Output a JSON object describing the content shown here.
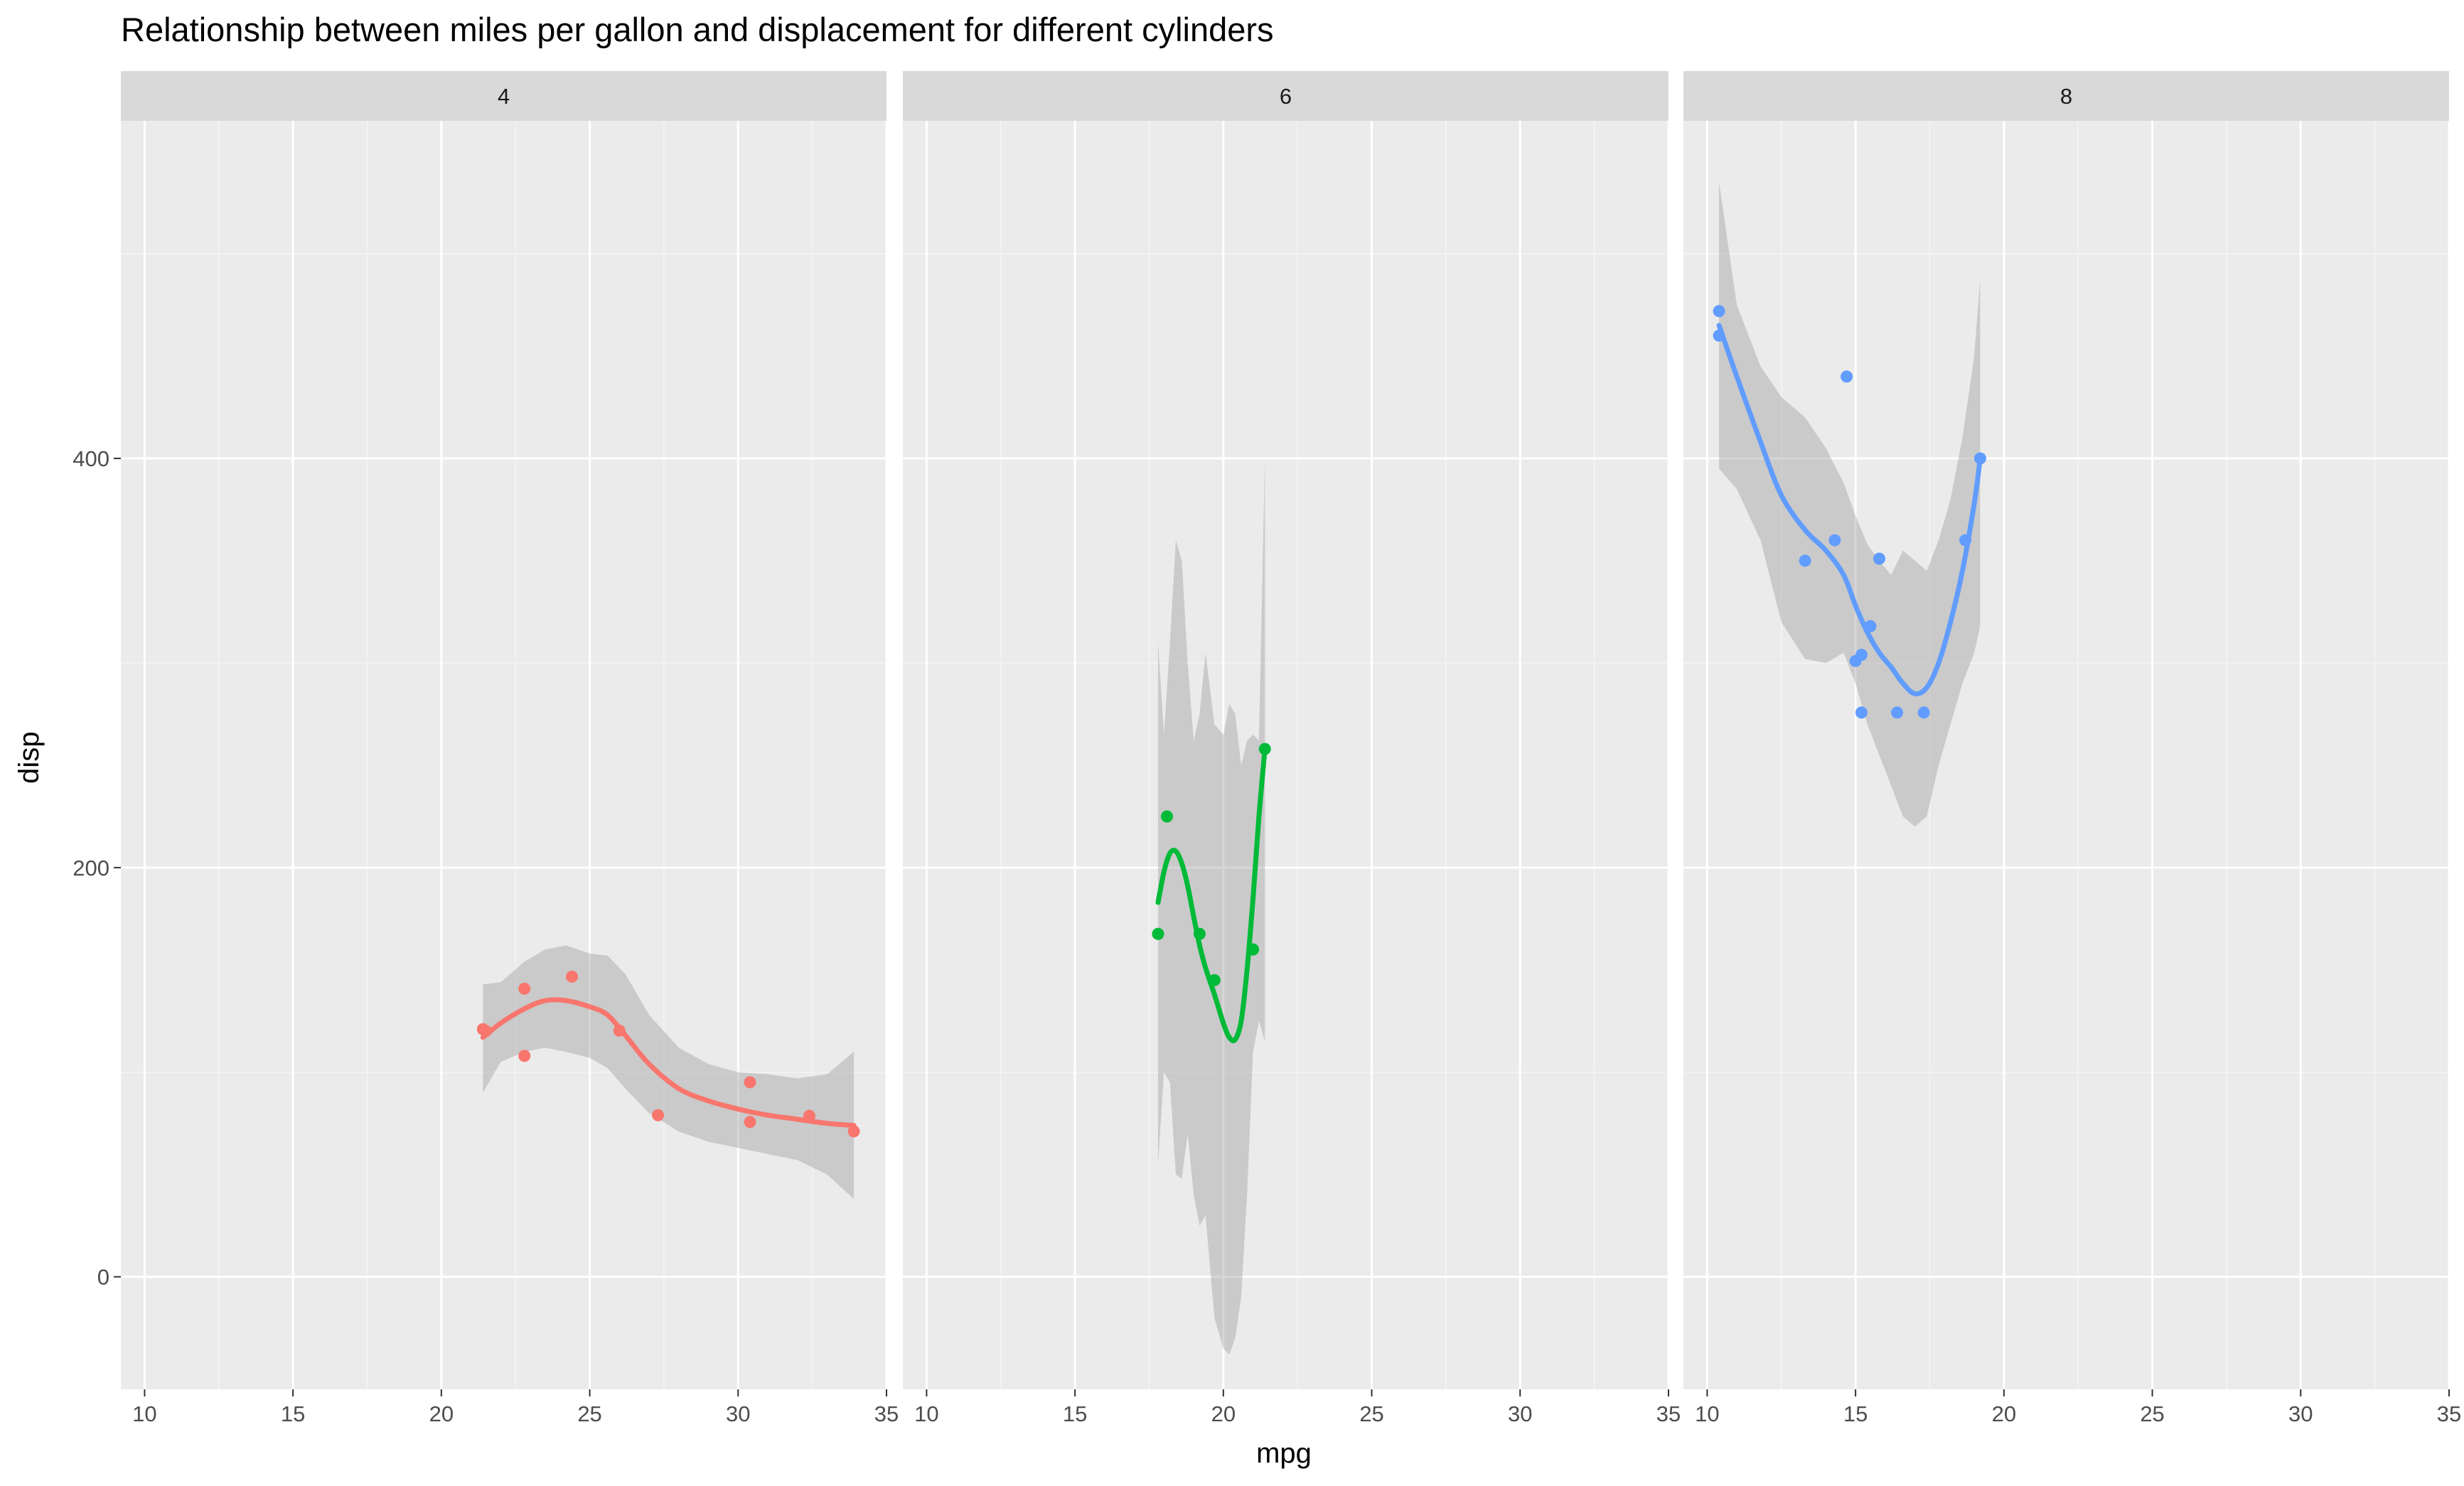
{
  "chart_data": {
    "type": "scatter",
    "title": "Relationship between miles per gallon and displacement for different cylinders",
    "xlabel": "mpg",
    "ylabel": "disp",
    "xlim": [
      9.2,
      35
    ],
    "ylim": [
      -55,
      565
    ],
    "x_ticks": [
      "10",
      "15",
      "20",
      "25",
      "30",
      "35"
    ],
    "y_ticks": [
      "0",
      "200",
      "400"
    ],
    "x_tick_values": [
      10,
      15,
      20,
      25,
      30,
      35
    ],
    "y_tick_values": [
      0,
      200,
      400
    ],
    "grid": true,
    "legend": "none",
    "facet_by": "cyl",
    "panels": [
      {
        "label": "4",
        "color": "#F8766D",
        "points": [
          {
            "x": 21.4,
            "y": 121.0
          },
          {
            "x": 22.8,
            "y": 140.8
          },
          {
            "x": 22.8,
            "y": 108.0
          },
          {
            "x": 24.4,
            "y": 146.7
          },
          {
            "x": 26.0,
            "y": 120.3
          },
          {
            "x": 27.3,
            "y": 79.0
          },
          {
            "x": 30.4,
            "y": 75.7
          },
          {
            "x": 30.4,
            "y": 95.1
          },
          {
            "x": 32.4,
            "y": 78.7
          },
          {
            "x": 33.9,
            "y": 71.1
          },
          {
            "x": 21.5,
            "y": 120.1
          }
        ],
        "smooth": [
          {
            "x": 21.4,
            "y": 117
          },
          {
            "x": 22.0,
            "y": 124
          },
          {
            "x": 22.8,
            "y": 131
          },
          {
            "x": 23.5,
            "y": 135
          },
          {
            "x": 24.2,
            "y": 135
          },
          {
            "x": 25.0,
            "y": 132
          },
          {
            "x": 25.6,
            "y": 128
          },
          {
            "x": 26.2,
            "y": 118
          },
          {
            "x": 27.0,
            "y": 104
          },
          {
            "x": 28.0,
            "y": 92
          },
          {
            "x": 29.0,
            "y": 86
          },
          {
            "x": 30.0,
            "y": 82
          },
          {
            "x": 31.0,
            "y": 79
          },
          {
            "x": 32.0,
            "y": 77
          },
          {
            "x": 33.0,
            "y": 75
          },
          {
            "x": 33.9,
            "y": 74
          }
        ],
        "band_upper": [
          {
            "x": 21.4,
            "y": 143
          },
          {
            "x": 22.0,
            "y": 144
          },
          {
            "x": 22.8,
            "y": 154
          },
          {
            "x": 23.5,
            "y": 160
          },
          {
            "x": 24.2,
            "y": 162
          },
          {
            "x": 25.0,
            "y": 158
          },
          {
            "x": 25.6,
            "y": 157
          },
          {
            "x": 26.2,
            "y": 148
          },
          {
            "x": 27.0,
            "y": 128
          },
          {
            "x": 28.0,
            "y": 112
          },
          {
            "x": 29.0,
            "y": 104
          },
          {
            "x": 30.0,
            "y": 100
          },
          {
            "x": 31.0,
            "y": 99
          },
          {
            "x": 32.0,
            "y": 97
          },
          {
            "x": 33.0,
            "y": 99
          },
          {
            "x": 33.9,
            "y": 110
          }
        ],
        "band_lower": [
          {
            "x": 21.4,
            "y": 90
          },
          {
            "x": 22.0,
            "y": 105
          },
          {
            "x": 22.8,
            "y": 110
          },
          {
            "x": 23.5,
            "y": 112
          },
          {
            "x": 24.2,
            "y": 110
          },
          {
            "x": 25.0,
            "y": 107
          },
          {
            "x": 25.6,
            "y": 102
          },
          {
            "x": 26.2,
            "y": 92
          },
          {
            "x": 27.0,
            "y": 80
          },
          {
            "x": 28.0,
            "y": 71
          },
          {
            "x": 29.0,
            "y": 66
          },
          {
            "x": 30.0,
            "y": 63
          },
          {
            "x": 31.0,
            "y": 60
          },
          {
            "x": 32.0,
            "y": 57
          },
          {
            "x": 33.0,
            "y": 50
          },
          {
            "x": 33.9,
            "y": 38
          }
        ]
      },
      {
        "label": "6",
        "color": "#00BA38",
        "points": [
          {
            "x": 21.0,
            "y": 160.0
          },
          {
            "x": 21.0,
            "y": 160.0
          },
          {
            "x": 21.4,
            "y": 258.0
          },
          {
            "x": 18.1,
            "y": 225.0
          },
          {
            "x": 19.2,
            "y": 167.6
          },
          {
            "x": 17.8,
            "y": 167.6
          },
          {
            "x": 19.7,
            "y": 145.0
          }
        ],
        "smooth": [
          {
            "x": 17.8,
            "y": 183
          },
          {
            "x": 18.0,
            "y": 198
          },
          {
            "x": 18.2,
            "y": 207
          },
          {
            "x": 18.4,
            "y": 208
          },
          {
            "x": 18.6,
            "y": 202
          },
          {
            "x": 18.8,
            "y": 191
          },
          {
            "x": 19.0,
            "y": 176
          },
          {
            "x": 19.2,
            "y": 162
          },
          {
            "x": 19.4,
            "y": 151
          },
          {
            "x": 19.7,
            "y": 138
          },
          {
            "x": 20.0,
            "y": 124
          },
          {
            "x": 20.2,
            "y": 117
          },
          {
            "x": 20.4,
            "y": 116
          },
          {
            "x": 20.6,
            "y": 125
          },
          {
            "x": 20.8,
            "y": 150
          },
          {
            "x": 21.0,
            "y": 185
          },
          {
            "x": 21.2,
            "y": 225
          },
          {
            "x": 21.4,
            "y": 258
          }
        ],
        "band_upper": [
          {
            "x": 17.8,
            "y": 310
          },
          {
            "x": 18.0,
            "y": 265
          },
          {
            "x": 18.2,
            "y": 310
          },
          {
            "x": 18.4,
            "y": 360
          },
          {
            "x": 18.6,
            "y": 350
          },
          {
            "x": 18.8,
            "y": 300
          },
          {
            "x": 19.0,
            "y": 262
          },
          {
            "x": 19.2,
            "y": 275
          },
          {
            "x": 19.4,
            "y": 305
          },
          {
            "x": 19.7,
            "y": 270
          },
          {
            "x": 20.0,
            "y": 265
          },
          {
            "x": 20.2,
            "y": 280
          },
          {
            "x": 20.4,
            "y": 275
          },
          {
            "x": 20.6,
            "y": 250
          },
          {
            "x": 20.8,
            "y": 262
          },
          {
            "x": 21.0,
            "y": 265
          },
          {
            "x": 21.2,
            "y": 262
          },
          {
            "x": 21.4,
            "y": 400
          }
        ],
        "band_lower": [
          {
            "x": 17.8,
            "y": 55
          },
          {
            "x": 18.0,
            "y": 100
          },
          {
            "x": 18.2,
            "y": 95
          },
          {
            "x": 18.4,
            "y": 50
          },
          {
            "x": 18.6,
            "y": 48
          },
          {
            "x": 18.8,
            "y": 70
          },
          {
            "x": 19.0,
            "y": 40
          },
          {
            "x": 19.2,
            "y": 25
          },
          {
            "x": 19.4,
            "y": 30
          },
          {
            "x": 19.7,
            "y": -20
          },
          {
            "x": 20.0,
            "y": -35
          },
          {
            "x": 20.2,
            "y": -38
          },
          {
            "x": 20.4,
            "y": -30
          },
          {
            "x": 20.6,
            "y": -10
          },
          {
            "x": 20.8,
            "y": 40
          },
          {
            "x": 21.0,
            "y": 110
          },
          {
            "x": 21.2,
            "y": 125
          },
          {
            "x": 21.4,
            "y": 115
          }
        ]
      },
      {
        "label": "8",
        "color": "#619CFF",
        "points": [
          {
            "x": 18.7,
            "y": 360.0
          },
          {
            "x": 14.3,
            "y": 360.0
          },
          {
            "x": 16.4,
            "y": 275.8
          },
          {
            "x": 17.3,
            "y": 275.8
          },
          {
            "x": 15.2,
            "y": 275.8
          },
          {
            "x": 10.4,
            "y": 472.0
          },
          {
            "x": 10.4,
            "y": 460.0
          },
          {
            "x": 14.7,
            "y": 440.0
          },
          {
            "x": 15.5,
            "y": 318.0
          },
          {
            "x": 15.2,
            "y": 304.0
          },
          {
            "x": 13.3,
            "y": 350.0
          },
          {
            "x": 19.2,
            "y": 400.0
          },
          {
            "x": 15.8,
            "y": 351.0
          },
          {
            "x": 15.0,
            "y": 301.0
          }
        ],
        "smooth": [
          {
            "x": 10.4,
            "y": 465
          },
          {
            "x": 11.0,
            "y": 440
          },
          {
            "x": 11.8,
            "y": 408
          },
          {
            "x": 12.5,
            "y": 382
          },
          {
            "x": 13.3,
            "y": 365
          },
          {
            "x": 14.0,
            "y": 355
          },
          {
            "x": 14.6,
            "y": 343
          },
          {
            "x": 15.0,
            "y": 328
          },
          {
            "x": 15.4,
            "y": 315
          },
          {
            "x": 15.8,
            "y": 305
          },
          {
            "x": 16.2,
            "y": 298
          },
          {
            "x": 16.6,
            "y": 290
          },
          {
            "x": 17.0,
            "y": 285
          },
          {
            "x": 17.4,
            "y": 288
          },
          {
            "x": 17.8,
            "y": 300
          },
          {
            "x": 18.2,
            "y": 320
          },
          {
            "x": 18.6,
            "y": 345
          },
          {
            "x": 19.0,
            "y": 378
          },
          {
            "x": 19.2,
            "y": 400
          }
        ],
        "band_upper": [
          {
            "x": 10.4,
            "y": 535
          },
          {
            "x": 11.0,
            "y": 475
          },
          {
            "x": 11.8,
            "y": 445
          },
          {
            "x": 12.5,
            "y": 430
          },
          {
            "x": 13.3,
            "y": 420
          },
          {
            "x": 14.0,
            "y": 405
          },
          {
            "x": 14.6,
            "y": 388
          },
          {
            "x": 15.0,
            "y": 372
          },
          {
            "x": 15.4,
            "y": 358
          },
          {
            "x": 15.8,
            "y": 350
          },
          {
            "x": 16.2,
            "y": 343
          },
          {
            "x": 16.6,
            "y": 355
          },
          {
            "x": 17.0,
            "y": 350
          },
          {
            "x": 17.4,
            "y": 345
          },
          {
            "x": 17.8,
            "y": 360
          },
          {
            "x": 18.2,
            "y": 380
          },
          {
            "x": 18.6,
            "y": 410
          },
          {
            "x": 19.0,
            "y": 450
          },
          {
            "x": 19.2,
            "y": 488
          }
        ],
        "band_lower": [
          {
            "x": 10.4,
            "y": 395
          },
          {
            "x": 11.0,
            "y": 385
          },
          {
            "x": 11.8,
            "y": 360
          },
          {
            "x": 12.5,
            "y": 320
          },
          {
            "x": 13.3,
            "y": 302
          },
          {
            "x": 14.0,
            "y": 300
          },
          {
            "x": 14.6,
            "y": 305
          },
          {
            "x": 15.0,
            "y": 290
          },
          {
            "x": 15.4,
            "y": 270
          },
          {
            "x": 15.8,
            "y": 255
          },
          {
            "x": 16.2,
            "y": 240
          },
          {
            "x": 16.6,
            "y": 225
          },
          {
            "x": 17.0,
            "y": 220
          },
          {
            "x": 17.4,
            "y": 225
          },
          {
            "x": 17.8,
            "y": 250
          },
          {
            "x": 18.2,
            "y": 270
          },
          {
            "x": 18.6,
            "y": 290
          },
          {
            "x": 19.0,
            "y": 305
          },
          {
            "x": 19.2,
            "y": 318
          }
        ]
      }
    ]
  }
}
